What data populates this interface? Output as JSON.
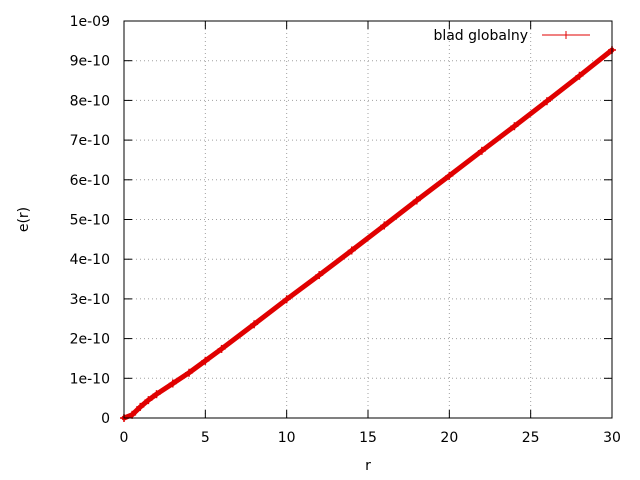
{
  "chart_data": {
    "type": "line",
    "xlabel": "r",
    "ylabel": "e(r)",
    "xlim": [
      0,
      30
    ],
    "ylim": [
      0,
      1e-09
    ],
    "x_ticks": [
      {
        "value": 0,
        "label": "0"
      },
      {
        "value": 5,
        "label": "5"
      },
      {
        "value": 10,
        "label": "10"
      },
      {
        "value": 15,
        "label": "15"
      },
      {
        "value": 20,
        "label": "20"
      },
      {
        "value": 25,
        "label": "25"
      },
      {
        "value": 30,
        "label": "30"
      }
    ],
    "y_ticks": [
      {
        "value": 0,
        "label": "0"
      },
      {
        "value": 1e-10,
        "label": "1e-10"
      },
      {
        "value": 2e-10,
        "label": "2e-10"
      },
      {
        "value": 3e-10,
        "label": "3e-10"
      },
      {
        "value": 4e-10,
        "label": "4e-10"
      },
      {
        "value": 5e-10,
        "label": "5e-10"
      },
      {
        "value": 6e-10,
        "label": "6e-10"
      },
      {
        "value": 7e-10,
        "label": "7e-10"
      },
      {
        "value": 8e-10,
        "label": "8e-10"
      },
      {
        "value": 9e-10,
        "label": "9e-10"
      },
      {
        "value": 1e-09,
        "label": "1e-09"
      }
    ],
    "grid": true,
    "legend_position": "top-right",
    "series": [
      {
        "name": "blad globalny",
        "color": "#e00000",
        "marker": "plus",
        "x": [
          0,
          0.5,
          1,
          1.5,
          2,
          3,
          4,
          5,
          6,
          8,
          10,
          12,
          14,
          16,
          18,
          20,
          22,
          24,
          26,
          28,
          30
        ],
        "y": [
          0,
          8e-12,
          2.8e-11,
          4.5e-11,
          6e-11,
          8.7e-11,
          1.14e-10,
          1.44e-10,
          1.74e-10,
          2.36e-10,
          2.99e-10,
          3.6e-10,
          4.22e-10,
          4.85e-10,
          5.48e-10,
          6.1e-10,
          6.73e-10,
          7.35e-10,
          7.98e-10,
          8.62e-10,
          9.27e-10
        ]
      }
    ]
  }
}
